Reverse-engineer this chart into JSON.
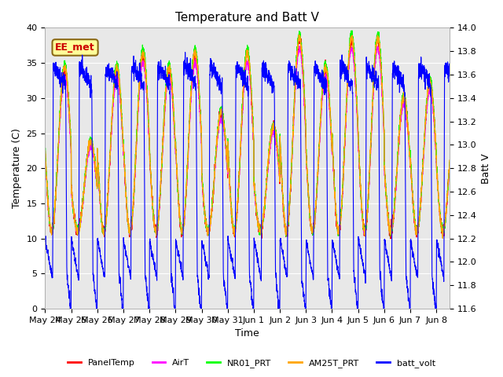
{
  "title": "Temperature and Batt V",
  "xlabel": "Time",
  "ylabel_left": "Temperature (C)",
  "ylabel_right": "Batt V",
  "xlim_days": [
    0,
    15.5
  ],
  "ylim_left": [
    0,
    40
  ],
  "ylim_right": [
    11.6,
    14.0
  ],
  "xtick_labels": [
    "May 24",
    "May 25",
    "May 26",
    "May 27",
    "May 28",
    "May 29",
    "May 30",
    "May 31",
    "Jun 1",
    "Jun 2",
    "Jun 3",
    "Jun 4",
    "Jun 5",
    "Jun 6",
    "Jun 7",
    "Jun 8"
  ],
  "legend_entries": [
    "PanelTemp",
    "AirT",
    "NR01_PRT",
    "AM25T_PRT",
    "batt_volt"
  ],
  "line_colors": [
    "#ff0000",
    "#ff00ff",
    "#00ff00",
    "#ffa500",
    "#0000ff"
  ],
  "annotation_text": "EE_met",
  "annotation_color": "#8b6914",
  "annotation_bg": "#ffff99",
  "background_color": "#e8e8e8",
  "grid_color": "#ffffff",
  "title_fontsize": 11,
  "tick_fontsize": 8,
  "label_fontsize": 9
}
